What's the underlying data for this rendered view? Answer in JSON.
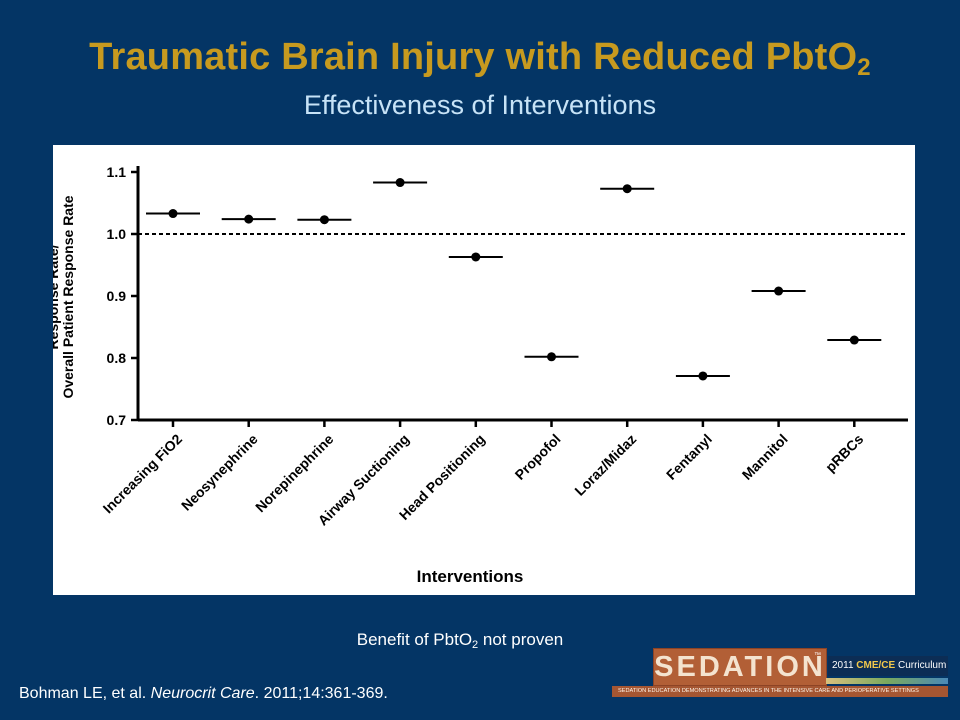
{
  "slide": {
    "title_main": "Traumatic Brain Injury with Reduced PbtO",
    "title_sub": "2",
    "subtitle": "Effectiveness of Interventions",
    "note_before": "Benefit of PbtO",
    "note_sub": "2",
    "note_after": " not proven",
    "citation_authors": "Bohman LE, et al. ",
    "citation_journal": "Neurocrit Care",
    "citation_rest": ". 2011;14:361-369."
  },
  "logo": {
    "name": "SEDATION",
    "tm": "™",
    "year_text": "2011 ",
    "year_bold": "CME/CE",
    "year_after": " Curriculum",
    "tagline": "SEDATION EDUCATION DEMONSTRATING ADVANCES IN THE INTENSIVE CARE AND PERIOPERATIVE SETTINGS"
  },
  "chart_data": {
    "type": "scatter",
    "title": "",
    "xlabel": "Interventions",
    "ylabel_line1": "Response Rate/",
    "ylabel_line2": "Overall Patient Response Rate",
    "ylim": [
      0.7,
      1.1
    ],
    "yticks": [
      "0.7",
      "0.8",
      "0.9",
      "1.0",
      "1.1"
    ],
    "reference_line": 1.0,
    "categories": [
      "Increasing FiO2",
      "Neosynephrine",
      "Norepinephrine",
      "Airway Suctioning",
      "Head Positioning",
      "Propofol",
      "Loraz/Midaz",
      "Fentanyl",
      "Mannitol",
      "pRBCs"
    ],
    "values": [
      1.033,
      1.024,
      1.023,
      1.083,
      0.963,
      0.802,
      1.073,
      0.771,
      0.908,
      0.829
    ],
    "grid": false,
    "colors": {
      "marker": "#000000",
      "reference": "#000000"
    }
  }
}
